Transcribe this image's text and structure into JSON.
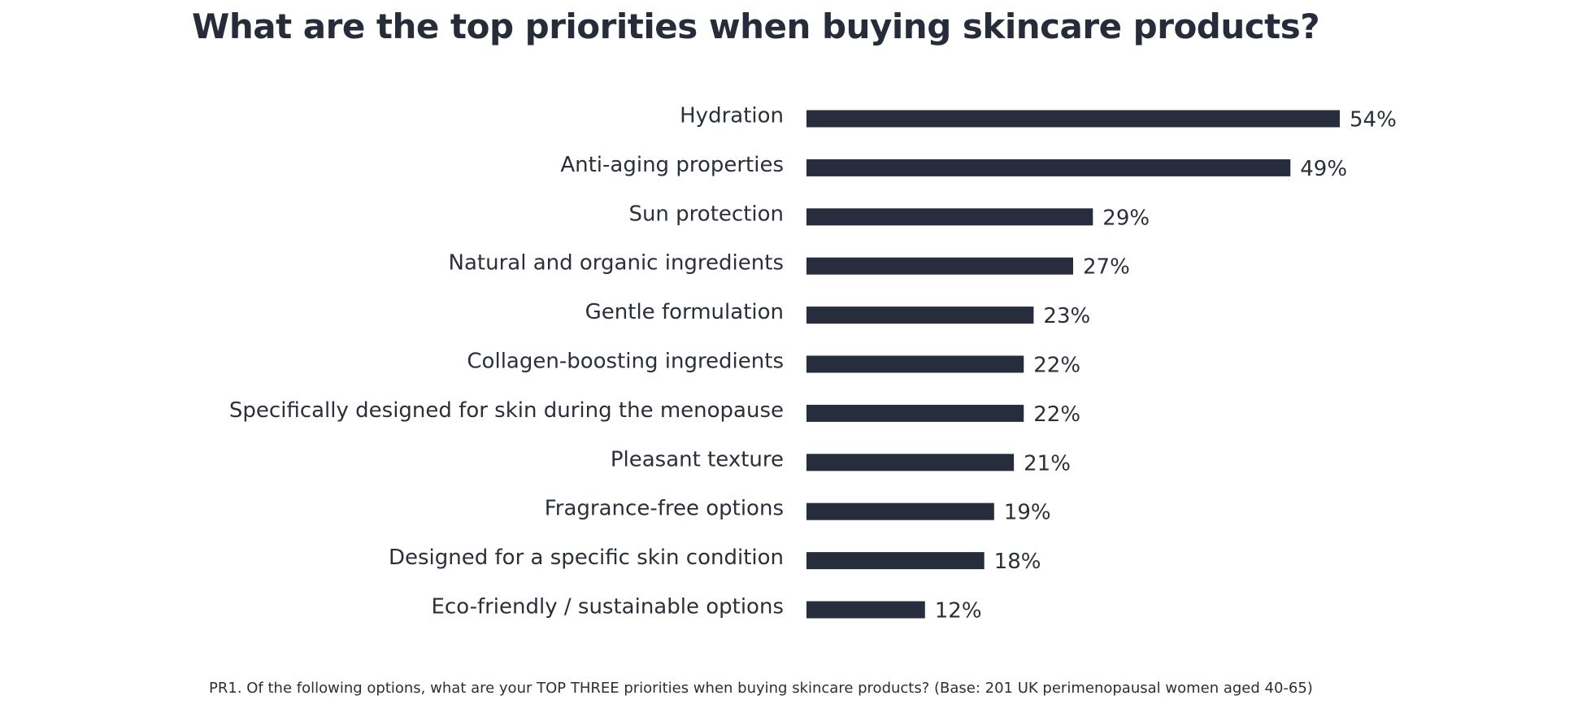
{
  "chart_data": {
    "type": "bar",
    "orientation": "horizontal",
    "title": "What are the top priorities when buying skincare products?",
    "categories": [
      "Hydration",
      "Anti-aging properties",
      "Sun protection",
      "Natural and organic ingredients",
      "Gentle formulation",
      "Collagen-boosting ingredients",
      "Specifically designed for skin during the menopause",
      "Pleasant texture",
      "Fragrance-free options",
      "Designed for a specific skin condition",
      "Eco-friendly / sustainable options"
    ],
    "values": [
      54,
      49,
      29,
      27,
      23,
      22,
      22,
      21,
      19,
      18,
      12
    ],
    "value_labels": [
      "54%",
      "49%",
      "29%",
      "27%",
      "23%",
      "22%",
      "22%",
      "21%",
      "19%",
      "18%",
      "12%"
    ],
    "unit": "%",
    "xlim": [
      0,
      54
    ],
    "grid": false,
    "legend": "none",
    "bar_color": "#272d3c"
  },
  "footnote": "PR1. Of the following options, what are your TOP THREE priorities when buying skincare products? (Base: 201 UK perimenopausal women aged 40-65)"
}
